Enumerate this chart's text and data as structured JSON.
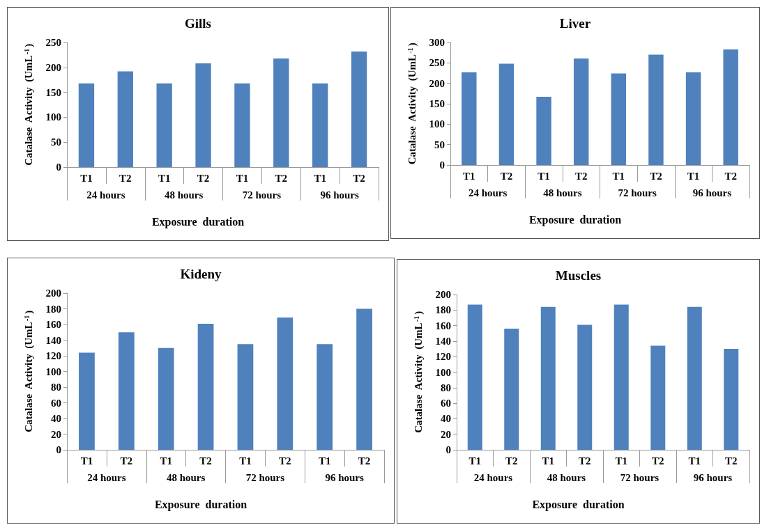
{
  "chart_data": [
    {
      "type": "bar",
      "title": "Gills",
      "xlabel": "Exposure  duration",
      "ylabel": "Catalase  Activity  (UmL$^{-1}$)",
      "categories": [
        "T1",
        "T2",
        "T1",
        "T2",
        "T1",
        "T2",
        "T1",
        "T2"
      ],
      "annotations": [
        "24 hours",
        "48 hours",
        "72 hours",
        "96 hours"
      ],
      "values": [
        168,
        192,
        168,
        208,
        168,
        218,
        168,
        232
      ],
      "color": "#4f81bd",
      "ylim": [
        0,
        250
      ],
      "yticks": [
        0,
        50,
        100,
        150,
        200,
        250
      ]
    },
    {
      "type": "bar",
      "title": "Liver",
      "xlabel": "Exposure  duration",
      "ylabel": "Catalase  Activity  (UmL$^{-1}$)",
      "categories": [
        "T1",
        "T2",
        "T1",
        "T2",
        "T1",
        "T2",
        "T1",
        "T2"
      ],
      "annotations": [
        "24 hours",
        "48 hours",
        "72 hours",
        "96 hours"
      ],
      "values": [
        227,
        248,
        167,
        261,
        224,
        270,
        227,
        283
      ],
      "color": "#4f81bd",
      "ylim": [
        0,
        300
      ],
      "yticks": [
        0,
        50,
        100,
        150,
        200,
        250,
        300
      ]
    },
    {
      "type": "bar",
      "title": "Kideny",
      "xlabel": "Exposure  duration",
      "ylabel": "Catalase  Activity  (UmL$^{-1}$)",
      "categories": [
        "T1",
        "T2",
        "T1",
        "T2",
        "T1",
        "T2",
        "T1",
        "T2"
      ],
      "annotations": [
        "24 hours",
        "48 hours",
        "72 hours",
        "96 hours"
      ],
      "values": [
        124,
        150,
        130,
        161,
        135,
        169,
        135,
        180
      ],
      "color": "#4f81bd",
      "ylim": [
        0,
        200
      ],
      "yticks": [
        0,
        20,
        40,
        60,
        80,
        100,
        120,
        140,
        160,
        180,
        200
      ]
    },
    {
      "type": "bar",
      "title": "Muscles",
      "xlabel": "Exposure  duration",
      "ylabel": "Catalase  Activity  (UmL$^{-1}$)",
      "categories": [
        "T1",
        "T2",
        "T1",
        "T2",
        "T1",
        "T2",
        "T1",
        "T2"
      ],
      "annotations": [
        "24 hours",
        "48 hours",
        "72 hours",
        "96 hours"
      ],
      "values": [
        187,
        156,
        184,
        161,
        187,
        134,
        184,
        130
      ],
      "color": "#4f81bd",
      "ylim": [
        0,
        200
      ],
      "yticks": [
        0,
        20,
        40,
        60,
        80,
        100,
        120,
        140,
        160,
        180,
        200
      ]
    }
  ]
}
